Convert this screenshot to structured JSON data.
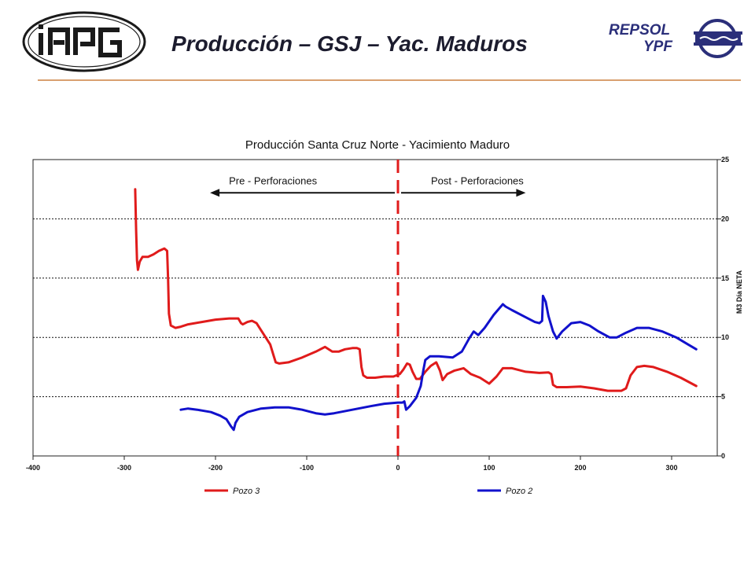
{
  "header": {
    "title": "Producción – GSJ – Yac. Maduros",
    "logo_left_text": "iapg",
    "logo_right_text_1": "REPSOL",
    "logo_right_text_2": "YPF"
  },
  "colors": {
    "pozo3": "#e01b1b",
    "pozo2": "#1111cc",
    "accent_rule": "#d9a070"
  },
  "chart_data": {
    "type": "line",
    "title": "Producción Santa Cruz Norte - Yacimiento Maduro",
    "xlabel": "",
    "ylabel": "M3 Día NETA",
    "xlim": [
      -400,
      350
    ],
    "ylim": [
      0,
      25
    ],
    "x_ticks": [
      -400,
      -300,
      -200,
      -100,
      0,
      100,
      200,
      300
    ],
    "y_ticks": [
      0,
      5,
      10,
      15,
      20,
      25
    ],
    "grid": "horizontal-dotted",
    "legend": "bottom",
    "annotations": {
      "pre": "Pre - Perforaciones",
      "post": "Post - Perforaciones",
      "divider_x": 0
    },
    "series": [
      {
        "name": "Pozo 3",
        "color_key": "pozo3",
        "points": [
          [
            -288,
            22.5
          ],
          [
            -287,
            19
          ],
          [
            -286,
            16.5
          ],
          [
            -285,
            15.7
          ],
          [
            -283,
            16.4
          ],
          [
            -280,
            16.8
          ],
          [
            -274,
            16.8
          ],
          [
            -268,
            17
          ],
          [
            -262,
            17.3
          ],
          [
            -256,
            17.5
          ],
          [
            -253,
            17.3
          ],
          [
            -252,
            15
          ],
          [
            -251,
            12
          ],
          [
            -249,
            11
          ],
          [
            -244,
            10.8
          ],
          [
            -238,
            10.9
          ],
          [
            -230,
            11.1
          ],
          [
            -215,
            11.3
          ],
          [
            -200,
            11.5
          ],
          [
            -185,
            11.6
          ],
          [
            -175,
            11.6
          ],
          [
            -172,
            11.2
          ],
          [
            -170,
            11.1
          ],
          [
            -165,
            11.3
          ],
          [
            -160,
            11.4
          ],
          [
            -155,
            11.2
          ],
          [
            -150,
            10.6
          ],
          [
            -145,
            10
          ],
          [
            -140,
            9.4
          ],
          [
            -136,
            8.4
          ],
          [
            -134,
            7.9
          ],
          [
            -130,
            7.8
          ],
          [
            -120,
            7.9
          ],
          [
            -105,
            8.3
          ],
          [
            -90,
            8.8
          ],
          [
            -80,
            9.2
          ],
          [
            -72,
            8.8
          ],
          [
            -65,
            8.8
          ],
          [
            -58,
            9
          ],
          [
            -50,
            9.1
          ],
          [
            -45,
            9.1
          ],
          [
            -42,
            9
          ],
          [
            -40,
            7.5
          ],
          [
            -38,
            6.8
          ],
          [
            -34,
            6.6
          ],
          [
            -25,
            6.6
          ],
          [
            -15,
            6.7
          ],
          [
            -5,
            6.7
          ],
          [
            2,
            6.9
          ],
          [
            6,
            7.3
          ],
          [
            10,
            7.8
          ],
          [
            13,
            7.7
          ],
          [
            16,
            7.1
          ],
          [
            20,
            6.5
          ],
          [
            24,
            6.5
          ],
          [
            30,
            7.1
          ],
          [
            36,
            7.6
          ],
          [
            42,
            7.9
          ],
          [
            46,
            7.2
          ],
          [
            49,
            6.4
          ],
          [
            54,
            6.9
          ],
          [
            62,
            7.2
          ],
          [
            72,
            7.4
          ],
          [
            80,
            6.9
          ],
          [
            90,
            6.6
          ],
          [
            100,
            6.1
          ],
          [
            108,
            6.7
          ],
          [
            115,
            7.4
          ],
          [
            125,
            7.4
          ],
          [
            140,
            7.1
          ],
          [
            155,
            7
          ],
          [
            165,
            7.05
          ],
          [
            168,
            6.9
          ],
          [
            170,
            6
          ],
          [
            174,
            5.8
          ],
          [
            185,
            5.8
          ],
          [
            200,
            5.85
          ],
          [
            215,
            5.7
          ],
          [
            230,
            5.5
          ],
          [
            245,
            5.5
          ],
          [
            250,
            5.7
          ],
          [
            255,
            6.8
          ],
          [
            262,
            7.5
          ],
          [
            270,
            7.6
          ],
          [
            280,
            7.5
          ],
          [
            295,
            7.1
          ],
          [
            310,
            6.6
          ],
          [
            327,
            5.9
          ]
        ]
      },
      {
        "name": "Pozo 2",
        "color_key": "pozo2",
        "points": [
          [
            -238,
            3.9
          ],
          [
            -230,
            4
          ],
          [
            -220,
            3.9
          ],
          [
            -205,
            3.7
          ],
          [
            -195,
            3.4
          ],
          [
            -188,
            3.1
          ],
          [
            -183,
            2.5
          ],
          [
            -180,
            2.2
          ],
          [
            -178,
            2.8
          ],
          [
            -174,
            3.3
          ],
          [
            -165,
            3.7
          ],
          [
            -150,
            4
          ],
          [
            -135,
            4.1
          ],
          [
            -120,
            4.1
          ],
          [
            -105,
            3.9
          ],
          [
            -90,
            3.6
          ],
          [
            -80,
            3.5
          ],
          [
            -70,
            3.6
          ],
          [
            -50,
            3.9
          ],
          [
            -30,
            4.2
          ],
          [
            -15,
            4.4
          ],
          [
            0,
            4.5
          ],
          [
            5,
            4.5
          ],
          [
            7,
            4.6
          ],
          [
            9,
            3.9
          ],
          [
            13,
            4.2
          ],
          [
            20,
            4.9
          ],
          [
            25,
            5.9
          ],
          [
            28,
            7.3
          ],
          [
            30,
            8.1
          ],
          [
            35,
            8.4
          ],
          [
            45,
            8.4
          ],
          [
            60,
            8.3
          ],
          [
            70,
            8.8
          ],
          [
            78,
            9.9
          ],
          [
            83,
            10.5
          ],
          [
            88,
            10.2
          ],
          [
            95,
            10.8
          ],
          [
            105,
            11.9
          ],
          [
            115,
            12.8
          ],
          [
            118,
            12.6
          ],
          [
            125,
            12.3
          ],
          [
            140,
            11.7
          ],
          [
            150,
            11.3
          ],
          [
            155,
            11.2
          ],
          [
            158,
            11.4
          ],
          [
            159,
            13.5
          ],
          [
            162,
            13
          ],
          [
            165,
            11.8
          ],
          [
            170,
            10.5
          ],
          [
            174,
            9.9
          ],
          [
            180,
            10.5
          ],
          [
            190,
            11.2
          ],
          [
            200,
            11.3
          ],
          [
            210,
            11
          ],
          [
            220,
            10.5
          ],
          [
            232,
            10
          ],
          [
            240,
            10
          ],
          [
            250,
            10.4
          ],
          [
            262,
            10.8
          ],
          [
            275,
            10.8
          ],
          [
            290,
            10.5
          ],
          [
            305,
            10
          ],
          [
            318,
            9.4
          ],
          [
            327,
            9
          ]
        ]
      }
    ]
  }
}
